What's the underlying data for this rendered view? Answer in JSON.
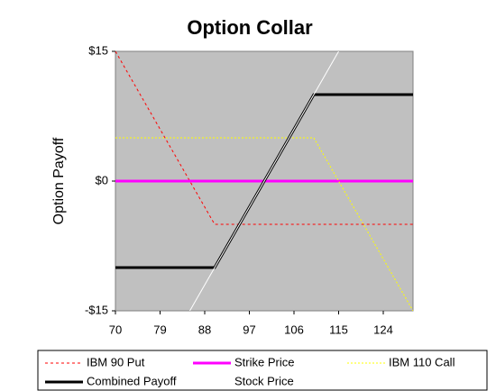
{
  "chart_data": {
    "type": "line",
    "title": "Option Collar",
    "y_label": "Option Payoff",
    "xlim": [
      70,
      130
    ],
    "xticks": [
      70,
      79,
      88,
      97,
      106,
      115,
      124
    ],
    "ylim": [
      -15,
      15
    ],
    "yticks": [
      {
        "value": 15,
        "label": "$15"
      },
      {
        "value": 0,
        "label": "$0"
      },
      {
        "value": -15,
        "label": "-$15"
      }
    ],
    "series": [
      {
        "name": "IBM 90 Put",
        "color": "#ff0000",
        "dash": "3,3",
        "width": 1,
        "x": [
          70,
          90,
          130
        ],
        "values": [
          15,
          -5,
          -5
        ]
      },
      {
        "name": "Strike Price",
        "color": "#ff00ff",
        "dash": "none",
        "width": 3,
        "x": [
          70,
          130
        ],
        "values": [
          0,
          0
        ]
      },
      {
        "name": "IBM 110 Call",
        "color": "#ffff00",
        "dash": "2,2",
        "width": 1,
        "x": [
          70,
          110,
          130
        ],
        "values": [
          5,
          5,
          -15
        ]
      },
      {
        "name": "Combined Payoff",
        "color": "#000000",
        "dash": "none",
        "width": 3,
        "x": [
          70,
          90,
          110,
          130
        ],
        "values": [
          -10,
          -10,
          10,
          10
        ]
      },
      {
        "name": "Stock Price",
        "color": "#ffffff",
        "dash": "none",
        "width": 1,
        "x": [
          85,
          115
        ],
        "values": [
          -15,
          15
        ]
      }
    ]
  }
}
